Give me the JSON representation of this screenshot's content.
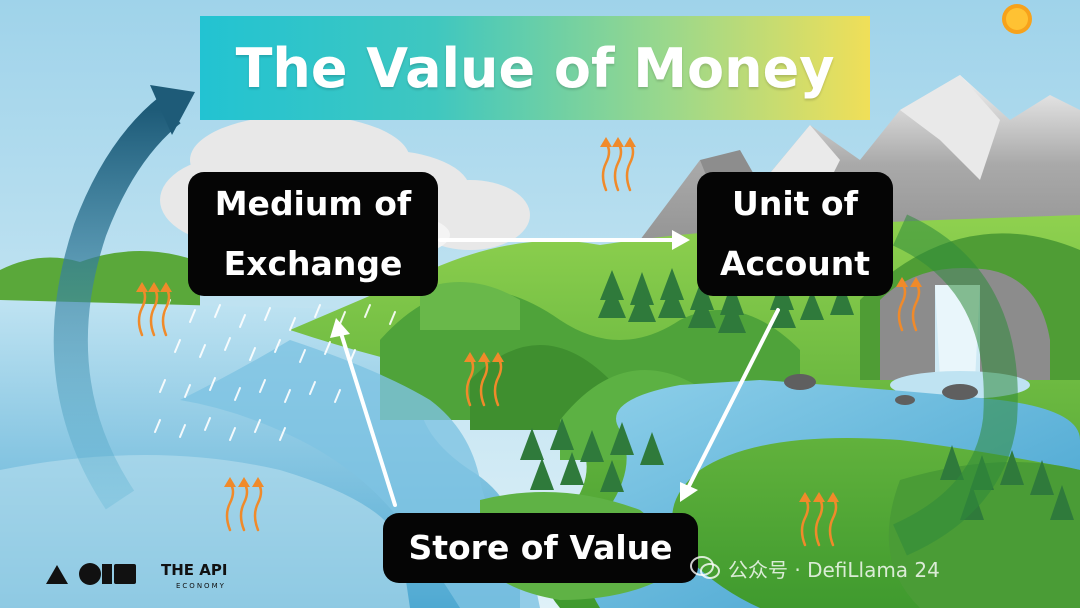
{
  "title": "The Value of Money",
  "concepts": {
    "medium_line1": "Medium of",
    "medium_line2": "Exchange",
    "unit_line1": "Unit of",
    "unit_line2": "Account",
    "store": "Store of Value"
  },
  "branding": {
    "name": "THE API",
    "subtitle": "ECONOMY"
  },
  "watermark": {
    "text": "公众号 · DefiLlama 24"
  },
  "colors": {
    "sky": "#bfe2f1",
    "title_gradient_start": "#22c3d2",
    "title_gradient_end": "#f0df58",
    "box_background": "#050505",
    "box_text": "#ffffff",
    "arrow": "#ffffff",
    "cycle_arrow": "#1f5f7c",
    "water": "#5fb6d8",
    "grass": "#6cbf3c"
  },
  "icons": [
    "sun-icon",
    "cloud-icon",
    "rain-icon",
    "evaporation-arrow-icon",
    "cycle-arrow-icon",
    "waterfall-icon",
    "tree-icon"
  ]
}
